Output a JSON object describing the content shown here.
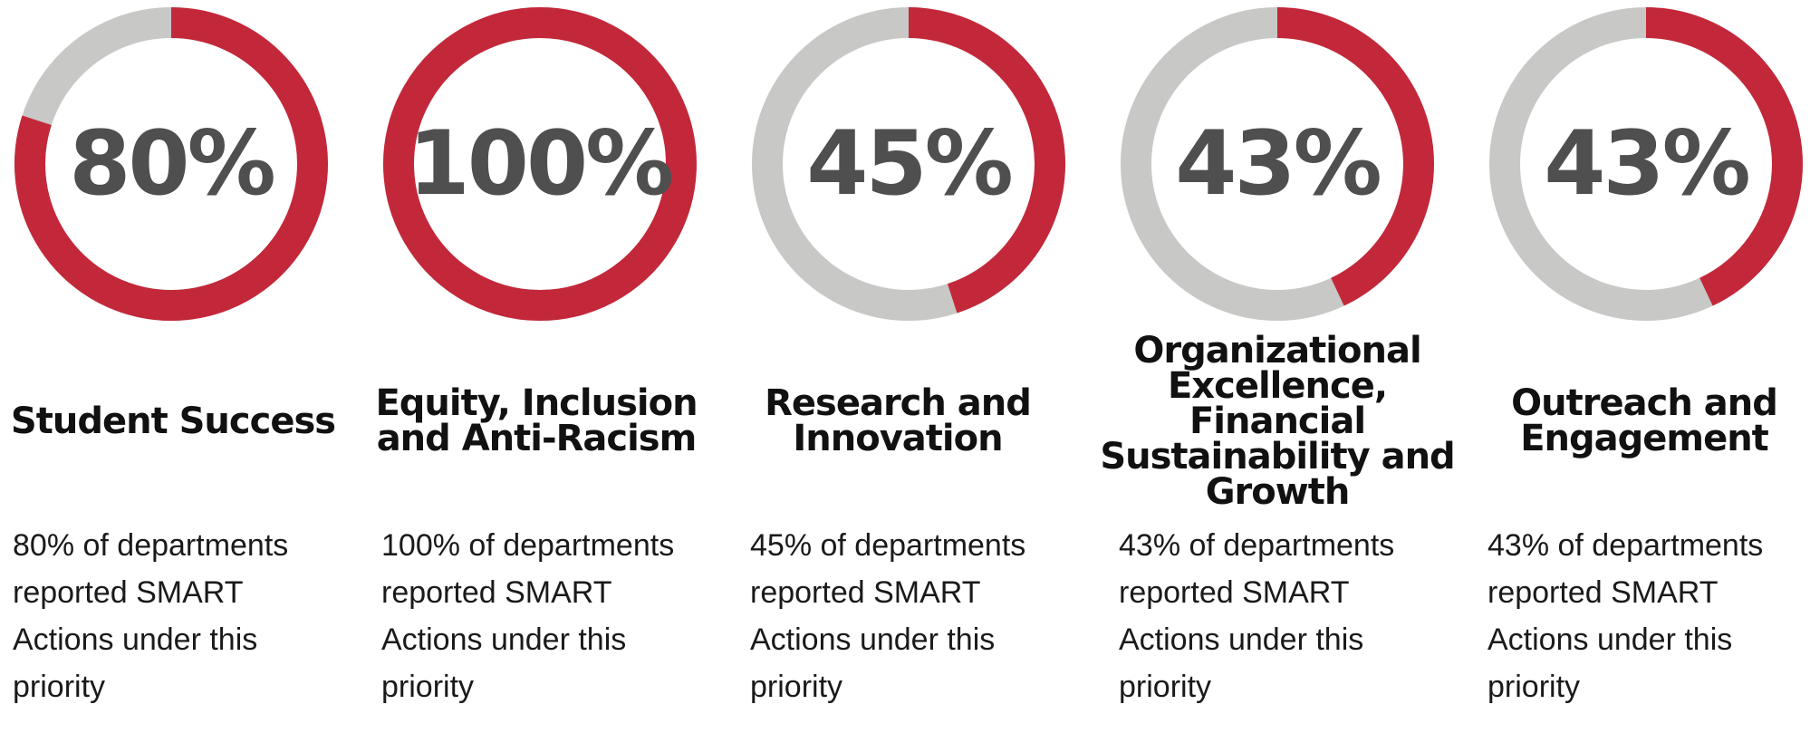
{
  "chart_data": [
    {
      "type": "pie",
      "value": 80,
      "label": "80%",
      "title": "Student Success",
      "description": "80% of departments reported SMART Actions under this priority"
    },
    {
      "type": "pie",
      "value": 100,
      "label": "100%",
      "title": "Equity, Inclusion and Anti-Racism",
      "description": "100% of departments reported SMART Actions under this priority"
    },
    {
      "type": "pie",
      "value": 45,
      "label": "45%",
      "title": "Research and Innovation",
      "description": "45% of departments reported SMART Actions under this priority"
    },
    {
      "type": "pie",
      "value": 43,
      "label": "43%",
      "title": "Organizational Excellence, Financial Sustainability and Growth",
      "description": "43% of departments reported SMART Actions under this priority"
    },
    {
      "type": "pie",
      "value": 43,
      "label": "43%",
      "title": "Outreach and Engagement",
      "description": "43% of departments reported SMART Actions under this priority"
    }
  ],
  "colors": {
    "filled": "#c3283a",
    "track": "#c8c8c6",
    "percent_text": "#4f4f4f",
    "title_text": "#111111",
    "body_text": "#1a1a1a"
  }
}
